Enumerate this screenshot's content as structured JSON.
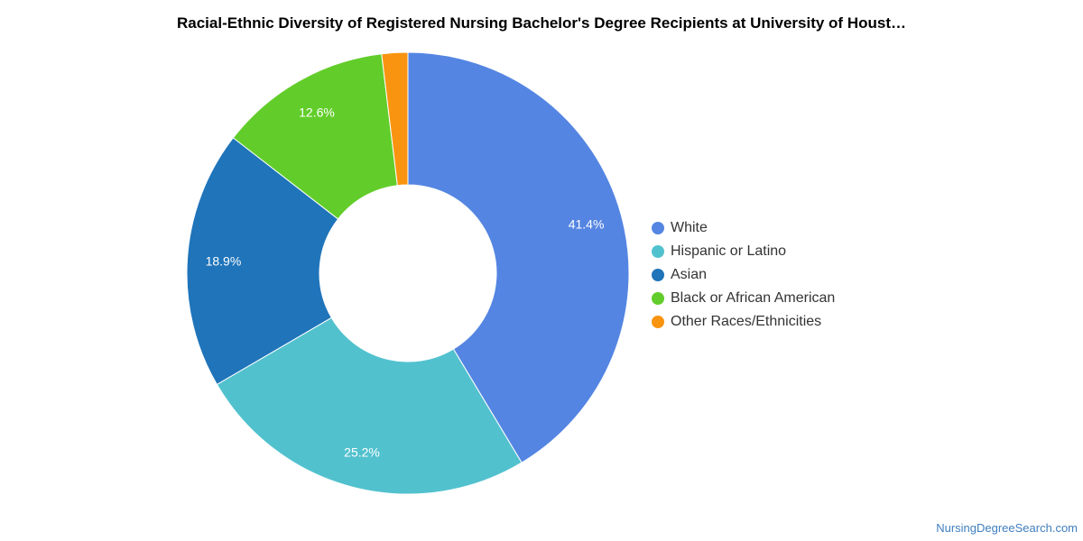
{
  "chart_data": {
    "type": "pie",
    "title": "Racial-Ethnic Diversity of Registered Nursing Bachelor's Degree Recipients at University of Houst…",
    "categories": [
      "White",
      "Hispanic or Latino",
      "Asian",
      "Black or African American",
      "Other Races/Ethnicities"
    ],
    "values": [
      41.4,
      25.2,
      18.9,
      12.6,
      1.9
    ],
    "value_labels": [
      "41.4%",
      "25.2%",
      "18.9%",
      "12.6%",
      ""
    ],
    "colors": [
      "#5485e2",
      "#52c1ce",
      "#1f74ba",
      "#62cd2a",
      "#f99410"
    ],
    "donut": true,
    "legend_position": "right"
  },
  "legend": {
    "items": [
      {
        "label": "White",
        "color": "#5485e2"
      },
      {
        "label": "Hispanic or Latino",
        "color": "#52c1ce"
      },
      {
        "label": "Asian",
        "color": "#1f74ba"
      },
      {
        "label": "Black or African American",
        "color": "#62cd2a"
      },
      {
        "label": "Other Races/Ethnicities",
        "color": "#f99410"
      }
    ]
  },
  "footer": {
    "source": "NursingDegreeSearch.com"
  }
}
